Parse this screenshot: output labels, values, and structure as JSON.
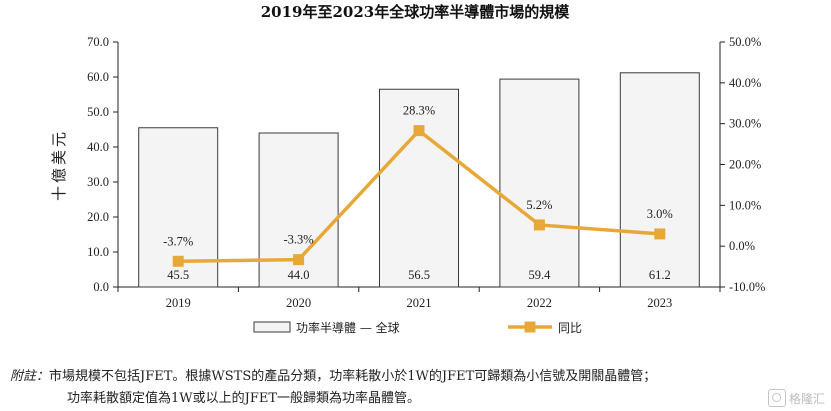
{
  "chart_data": {
    "type": "bar",
    "title": "2019年至2023年全球功率半導體市場的規模",
    "ylabel": "十億美元",
    "categories": [
      "2019",
      "2020",
      "2021",
      "2022",
      "2023"
    ],
    "series": [
      {
        "name": "功率半導體 — 全球",
        "kind": "bar",
        "axis": "left",
        "values": [
          45.5,
          44.0,
          56.5,
          59.4,
          61.2
        ],
        "labels": [
          "45.5",
          "44.0",
          "56.5",
          "59.4",
          "61.2"
        ]
      },
      {
        "name": "同比",
        "kind": "line",
        "axis": "right",
        "values": [
          -3.7,
          -3.3,
          28.3,
          5.2,
          3.0
        ],
        "labels": [
          "-3.7%",
          "-3.3%",
          "28.3%",
          "5.2%",
          "3.0%"
        ]
      }
    ],
    "ylim": [
      0,
      70
    ],
    "y2lim": [
      -10,
      50
    ],
    "yticks": [
      "0.0",
      "10.0",
      "20.0",
      "30.0",
      "40.0",
      "50.0",
      "60.0",
      "70.0"
    ],
    "y2ticks": [
      "-10.0%",
      "0.0%",
      "10.0%",
      "20.0%",
      "30.0%",
      "40.0%",
      "50.0%"
    ],
    "legend_position": "bottom-center",
    "grid": false,
    "colors": {
      "bar_fill": "#f4f4f4",
      "bar_stroke": "#3a3a3a",
      "line": "#e8a838",
      "axis": "#222222"
    }
  },
  "note": {
    "label": "附註：",
    "line1": "市場規模不包括JFET。根據WSTS的產品分類，功率耗散小於1W的JFET可歸類為小信號及開關晶體管；",
    "line2": "功率耗散額定值為1W或以上的JFET一般歸類為功率晶體管。"
  },
  "watermark": {
    "text": "格隆汇"
  }
}
